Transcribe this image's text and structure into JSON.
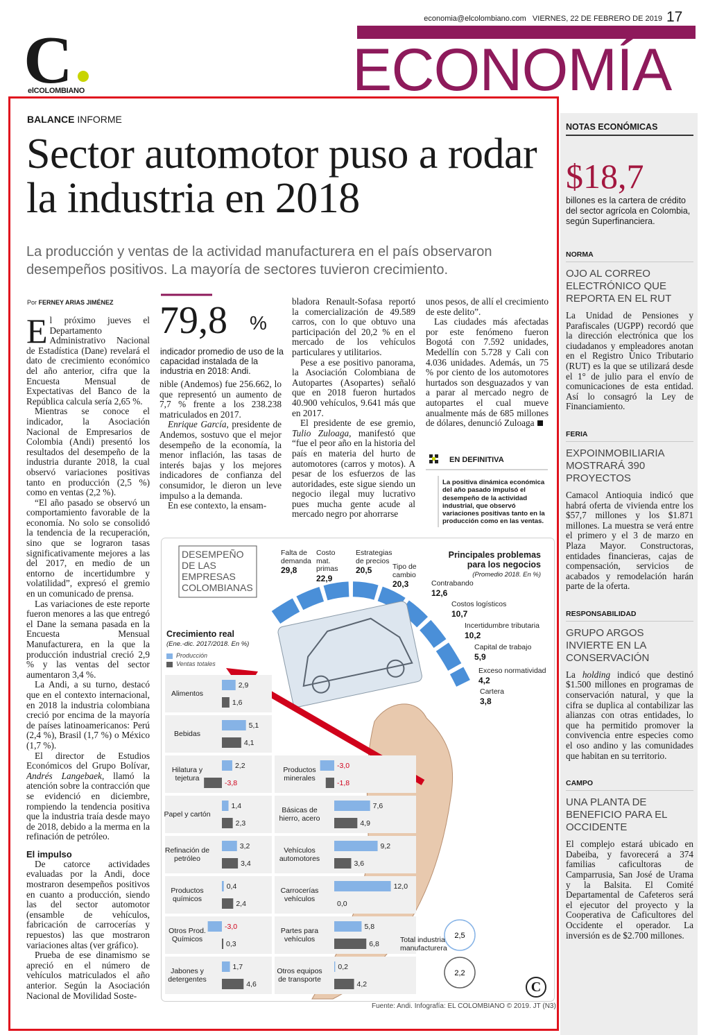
{
  "header": {
    "email": "economia@elcolombiano.com",
    "date": "VIERNES, 22 DE FEBRERO DE 2019",
    "page": "17",
    "section": "ECONOMÍA",
    "logo": "C",
    "logo_name": "elCOLOMBIANO"
  },
  "article": {
    "kicker": "BALANCE",
    "kicker_rest": "INFORME",
    "title": "Sector automotor puso a rodar la industria en 2018",
    "subtitle": "La producción y ventas de la actividad manufacturera en el país observaron desempeños positivos. La mayoría de sectores tuvieron crecimiento.",
    "byline_prefix": "Por",
    "byline": "FERNEY ARIAS JIMÉNEZ",
    "callout": {
      "value": "79,8",
      "unit": "%",
      "text": "indicador promedio de uso de la capacidad instalada de la industria en 2018: Andi."
    },
    "columns": [
      [
        {
          "text": [
            "El próximo jueves el Departamento Administrativo Nacional de Estadística (Dane) revelará el dato de crecimiento económico del año anterior, cifra que la Encuesta Mensual de Expectativas del Banco de la República calcula sería 2,65 %."
          ]
        },
        {
          "text": [
            "Mientras se conoce el indicador, la Asociación Nacional de Empresarios de Colombia (Andi) presentó los resultados del desempeño de la industria durante 2018, la cual observó variaciones positivas tanto en producción (2,5 %) como en ventas (2,2 %)."
          ]
        },
        {
          "text": [
            "“El año pasado se observó un comportamiento favorable de la economía. No solo se consolidó la tendencia de la recuperación, sino que se lograron tasas significativamente mejores a las del 2017, en medio de un entorno de incertidumbre y volatilidad”, expresó el gremio en un comunicado de prensa."
          ]
        },
        {
          "text": [
            "Las variaciones de este reporte fueron menores a las que entregó el Dane la semana pasada en la Encuesta Mensual Manufacturera, en la que la producción industrial creció 2,9 % y las ventas del sector aumentaron 3,4 %."
          ]
        },
        {
          "text": [
            "La Andi, a su turno, destacó que en el contexto internacional, en 2018 la industria colombiana creció por encima de la mayoría de países latinoamericanos: Perú (2,4 %), Brasil (1,7 %) o México (1,7 %)."
          ]
        },
        {
          "text": [
            "El director de Estudios Económicos del Grupo Bolívar, ",
            "Andrés Langebaek",
            ", llamó la atención sobre la contracción que se evidenció en diciembre, rompiendo la tendencia positiva que la industria traía desde mayo de 2018, debido a la merma en la refinación de petróleo."
          ]
        },
        {
          "heading": "El impulso"
        },
        {
          "text": [
            "De catorce actividades evaluadas por la Andi, doce mostraron desempeños positivos en cuanto a producción, siendo las del sector automotor (ensamble de vehículos, fabricación de carrocerías y repuestos) las que mostraron variaciones altas (ver gráfico)."
          ]
        },
        {
          "text": [
            "Prueba de ese dinamismo se apreció en el número de vehículos matriculados el año anterior. Según la Asociación Nacional de Movilidad Soste-"
          ]
        }
      ],
      [
        {
          "text": [
            "nible (Andemos) fue 256.662, lo que representó un aumento de 7,7 % frente a los 238.238 matriculados en 2017."
          ]
        },
        {
          "text": [
            "",
            "Enrique García",
            ", presidente de Andemos, sostuvo que el mejor desempeño de la economía, la menor inflación, las tasas de interés bajas y los mejores indicadores de confianza del consumidor, le dieron un leve impulso a la demanda."
          ]
        },
        {
          "text": [
            "En ese contexto, la ensam-"
          ]
        }
      ],
      [
        {
          "text": [
            "bladora Renault-Sofasa reportó la comercialización de 49.589 carros, con lo que obtuvo una participación del 20,2 % en el mercado de los vehículos particulares y utilitarios."
          ]
        },
        {
          "text": [
            "Pese a ese positivo panorama, la Asociación Colombiana de Autopartes (Asopartes) señaló que en 2018 fueron hurtados 40.900 vehículos, 9.641 más que en 2017."
          ]
        },
        {
          "text": [
            "El presidente de ese gremio, ",
            "Tulio Zuloaga",
            ", manifestó que “fue el peor año en la historia del país en materia del hurto de automotores (carros y motos). A pesar de los esfuerzos de las autoridades, este sigue siendo un negocio ilegal muy lucrativo pues mucha gente acude al mercado negro por ahorrarse"
          ]
        }
      ],
      [
        {
          "text": [
            "unos pesos, de allí el crecimiento de este delito”."
          ]
        },
        {
          "text": [
            "Las ciudades más afectadas por este fenómeno fueron Bogotá con 7.592 unidades, Medellín con 5.728 y Cali con 4.036 unidades. Además, un 75 % por ciento de los automotores hurtados son desguazados y van a parar al mercado negro de autopartes el cual mueve anualmente más de 685 millones de dólares, denunció Zuloaga"
          ]
        }
      ]
    ],
    "summary": {
      "label": "EN DEFINITIVA",
      "text": "La positiva dinámica económica del año pasado impulsó el desempeño de la actividad industrial, que observó variaciones positivas tanto en la producción como en las ventas."
    }
  },
  "infographic": {
    "title": "DESEMPEÑO DE LAS EMPRESAS COLOMBIANAS",
    "problems": {
      "title": "Principales problemas para los negocios",
      "subtitle": "(Promedio 2018. En %)",
      "items": [
        {
          "label": "Falta de demanda",
          "value": "29,8"
        },
        {
          "label": "Costo mat. primas",
          "value": "22,9"
        },
        {
          "label": "Estrategias de precios",
          "value": "20,5"
        },
        {
          "label": "Tipo de cambio",
          "value": "20,3"
        },
        {
          "label": "Contrabando",
          "value": "12,6"
        },
        {
          "label": "Costos logísticos",
          "value": "10,7"
        },
        {
          "label": "Incertidumbre tributaria",
          "value": "10,2"
        },
        {
          "label": "Capital de trabajo",
          "value": "5,9"
        },
        {
          "label": "Exceso normatividad",
          "value": "4,2"
        },
        {
          "label": "Cartera",
          "value": "3,8"
        }
      ]
    },
    "growth": {
      "title": "Crecimiento real",
      "subtitle": "(Ene.-dic. 2017/2018. En %)",
      "series": [
        {
          "name": "Producción",
          "color": "#86b3e6"
        },
        {
          "name": "Ventas totales",
          "color": "#5e5e5e"
        }
      ],
      "negative_color": "#d0021b",
      "left": [
        {
          "label": "Alimentos",
          "values": [
            2.9,
            1.6
          ],
          "value_labels": [
            "2,9",
            "1,6"
          ]
        },
        {
          "label": "Bebidas",
          "values": [
            5.1,
            4.1
          ],
          "value_labels": [
            "5,1",
            "4,1"
          ]
        },
        {
          "label": "Hilatura y tejetura",
          "values": [
            2.2,
            -3.8
          ],
          "value_labels": [
            "2,2",
            "-3,8"
          ]
        },
        {
          "label": "Papel y cartón",
          "values": [
            1.4,
            2.3
          ],
          "value_labels": [
            "1,4",
            "2,3"
          ]
        },
        {
          "label": "Refinación de petróleo",
          "values": [
            3.2,
            3.4
          ],
          "value_labels": [
            "3,2",
            "3,4"
          ]
        },
        {
          "label": "Productos químicos",
          "values": [
            0.4,
            2.4
          ],
          "value_labels": [
            "0,4",
            "2,4"
          ]
        },
        {
          "label": "Otros Prod. Químicos",
          "values": [
            -3.0,
            0.3
          ],
          "value_labels": [
            "-3,0",
            "0,3"
          ]
        },
        {
          "label": "Jabones y detergentes",
          "values": [
            1.7,
            4.6
          ],
          "value_labels": [
            "1,7",
            "4,6"
          ]
        }
      ],
      "right": [
        {
          "label": "Productos minerales",
          "values": [
            -3.0,
            -1.8
          ],
          "value_labels": [
            "-3,0",
            "-1,8"
          ]
        },
        {
          "label": "Básicas de hierro, acero",
          "values": [
            7.6,
            4.9
          ],
          "value_labels": [
            "7,6",
            "4,9"
          ]
        },
        {
          "label": "Vehículos automotores",
          "values": [
            9.2,
            3.6
          ],
          "value_labels": [
            "9,2",
            "3,6"
          ]
        },
        {
          "label": "Carrocerías vehículos",
          "values": [
            12.0,
            0.0
          ],
          "value_labels": [
            "12,0",
            "0,0"
          ]
        },
        {
          "label": "Partes para vehículos",
          "values": [
            5.8,
            6.8
          ],
          "value_labels": [
            "5,8",
            "6,8"
          ]
        },
        {
          "label": "Otros equipos de transporte",
          "values": [
            0.2,
            4.2
          ],
          "value_labels": [
            "0,2",
            "4,2"
          ]
        }
      ],
      "total": {
        "label": "Total industria manufacturera",
        "values": [
          2.5,
          2.2
        ],
        "value_labels": [
          "2,5",
          "2,2"
        ]
      }
    },
    "source": "Fuente: Andi. Infografía: EL COLOMBIANO © 2019. JT (N3)"
  },
  "sidebar": {
    "title": "NOTAS ECONÓMICAS",
    "figure": "$18,7",
    "figure_text": "billones es la cartera de crédito del sector agrícola en Colombia, según Superfinanciera.",
    "notes": [
      {
        "label": "NORMA",
        "headline": "OJO AL CORREO ELECTRÓNICO QUE REPORTA EN EL RUT",
        "body": [
          "La Unidad de Pensiones y Parafiscales (UGPP) recordó que la dirección electrónica que los ciudadanos y empleadores anotan en el Registro Único Tributario (RUT) es la que se utilizará desde el 1° de julio para el envío de comunicaciones de esta entidad. Así lo consagró la Ley de Financiamiento."
        ]
      },
      {
        "label": "FERIA",
        "headline": "EXPOINMOBILIARIA MOSTRARÁ 390 PROYECTOS",
        "body": [
          "Camacol Antioquia indicó que habrá oferta de vivienda entre los $57,7 millones y los $1.871 millones. La muestra se verá entre el primero y el 3 de marzo en Plaza Mayor. Constructoras, entidades financieras, cajas de compensación, servicios de acabados y remodelación harán parte de la oferta."
        ]
      },
      {
        "label": "RESPONSABILIDAD",
        "headline": "GRUPO ARGOS INVIERTE EN LA CONSERVACIÓN",
        "body": [
          "La ",
          "holding",
          " indicó que destinó $1.500 millones en programas de conservación natural, y que la cifra se duplica al contabilizar las alianzas con otras entidades, lo que ha permitido promover la convivencia entre especies como el oso andino y las comunidades que habitan en su territorio."
        ]
      },
      {
        "label": "CAMPO",
        "headline": "UNA PLANTA DE BENEFICIO PARA EL OCCIDENTE",
        "body": [
          "El complejo estará ubicado en Dabeiba, y favorecerá a 374 familias caficultoras de Camparrusia, San José de Urama y la Balsita. El Comité Departamental de Cafeteros será el ejecutor del proyecto y la Cooperativa de Caficultores del Occidente el operador. La inversión es de $2.700 millones."
        ]
      }
    ]
  }
}
